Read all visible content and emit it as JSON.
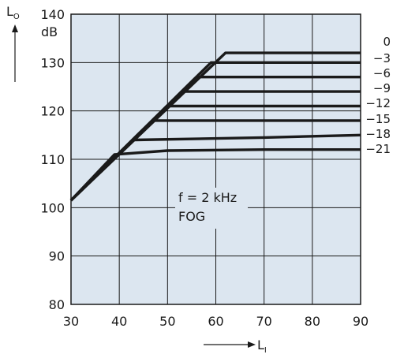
{
  "chart_data": {
    "type": "line",
    "ylabel": "L",
    "ylabel_sub": "O",
    "yunit": "dB",
    "xlabel": "L",
    "xlabel_sub": "I",
    "xlim": [
      30,
      90
    ],
    "ylim": [
      80,
      140
    ],
    "xticks": [
      30,
      40,
      50,
      60,
      70,
      80,
      90
    ],
    "yticks": [
      80,
      90,
      100,
      110,
      120,
      130,
      140
    ],
    "grid": true,
    "plot_background": "#dce6f0",
    "line_color": "#1a1a1a",
    "annotation": [
      "f = 2 kHz",
      "FOG"
    ],
    "series": [
      {
        "name": "0",
        "x": [
          30,
          62,
          90
        ],
        "y": [
          101.5,
          132,
          132
        ]
      },
      {
        "name": "−3",
        "x": [
          30,
          59,
          90
        ],
        "y": [
          101.5,
          130,
          130
        ]
      },
      {
        "name": "−6",
        "x": [
          30,
          56,
          90
        ],
        "y": [
          101.5,
          127,
          127
        ]
      },
      {
        "name": "−9",
        "x": [
          30,
          53,
          90
        ],
        "y": [
          101.5,
          124,
          124
        ]
      },
      {
        "name": "−12",
        "x": [
          30,
          50,
          90
        ],
        "y": [
          101.5,
          121,
          121
        ]
      },
      {
        "name": "−15",
        "x": [
          30,
          47,
          90
        ],
        "y": [
          101.5,
          118,
          118
        ]
      },
      {
        "name": "−18",
        "x": [
          30,
          43,
          70,
          90
        ],
        "y": [
          101.5,
          114,
          114.5,
          115
        ]
      },
      {
        "name": "−21",
        "x": [
          30,
          39,
          50,
          70,
          90
        ],
        "y": [
          101.5,
          111,
          111.8,
          112,
          112
        ]
      }
    ]
  }
}
